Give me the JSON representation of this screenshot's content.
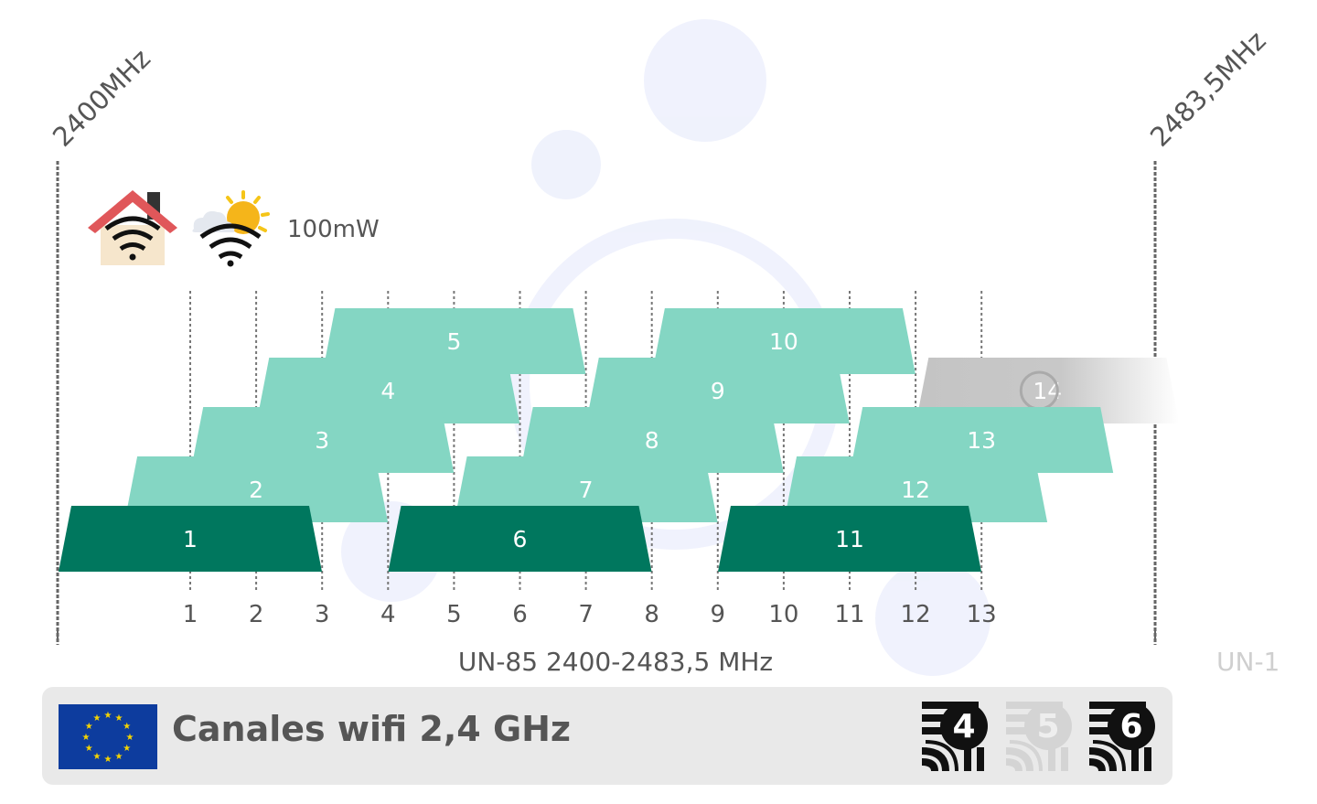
{
  "power_label": "100mW",
  "freq_start_label": "2400MHz",
  "freq_end_label": "2483,5MHz",
  "band_label": "UN-85 2400-2483,5 MHz",
  "next_band_label": "UN-1",
  "title": "Canales wifi 2,4 GHz",
  "wifi_generations": [
    {
      "label": "4",
      "active": true
    },
    {
      "label": "5",
      "active": false
    },
    {
      "label": "6",
      "active": true
    }
  ],
  "colors": {
    "non_overlapping": "#00775e",
    "overlapping": "#84d6c3",
    "unavailable": "#c4c4c4",
    "house_roof": "#e0575a",
    "house_wall": "#f6e6cc"
  },
  "chart_data": {
    "type": "channel-map",
    "channels": [
      {
        "number": "1",
        "row": 0,
        "non_overlapping": true
      },
      {
        "number": "2",
        "row": 1,
        "non_overlapping": false
      },
      {
        "number": "3",
        "row": 2,
        "non_overlapping": false
      },
      {
        "number": "4",
        "row": 3,
        "non_overlapping": false
      },
      {
        "number": "5",
        "row": 4,
        "non_overlapping": false
      },
      {
        "number": "6",
        "row": 0,
        "non_overlapping": true
      },
      {
        "number": "7",
        "row": 1,
        "non_overlapping": false
      },
      {
        "number": "8",
        "row": 2,
        "non_overlapping": false
      },
      {
        "number": "9",
        "row": 3,
        "non_overlapping": false
      },
      {
        "number": "10",
        "row": 4,
        "non_overlapping": false
      },
      {
        "number": "11",
        "row": 0,
        "non_overlapping": true
      },
      {
        "number": "12",
        "row": 1,
        "non_overlapping": false
      },
      {
        "number": "13",
        "row": 2,
        "non_overlapping": false
      },
      {
        "number": "14",
        "row": 3,
        "non_overlapping": false,
        "available": false
      }
    ],
    "axis_ticks": [
      "1",
      "2",
      "3",
      "4",
      "5",
      "6",
      "7",
      "8",
      "9",
      "10",
      "11",
      "12",
      "13"
    ]
  }
}
